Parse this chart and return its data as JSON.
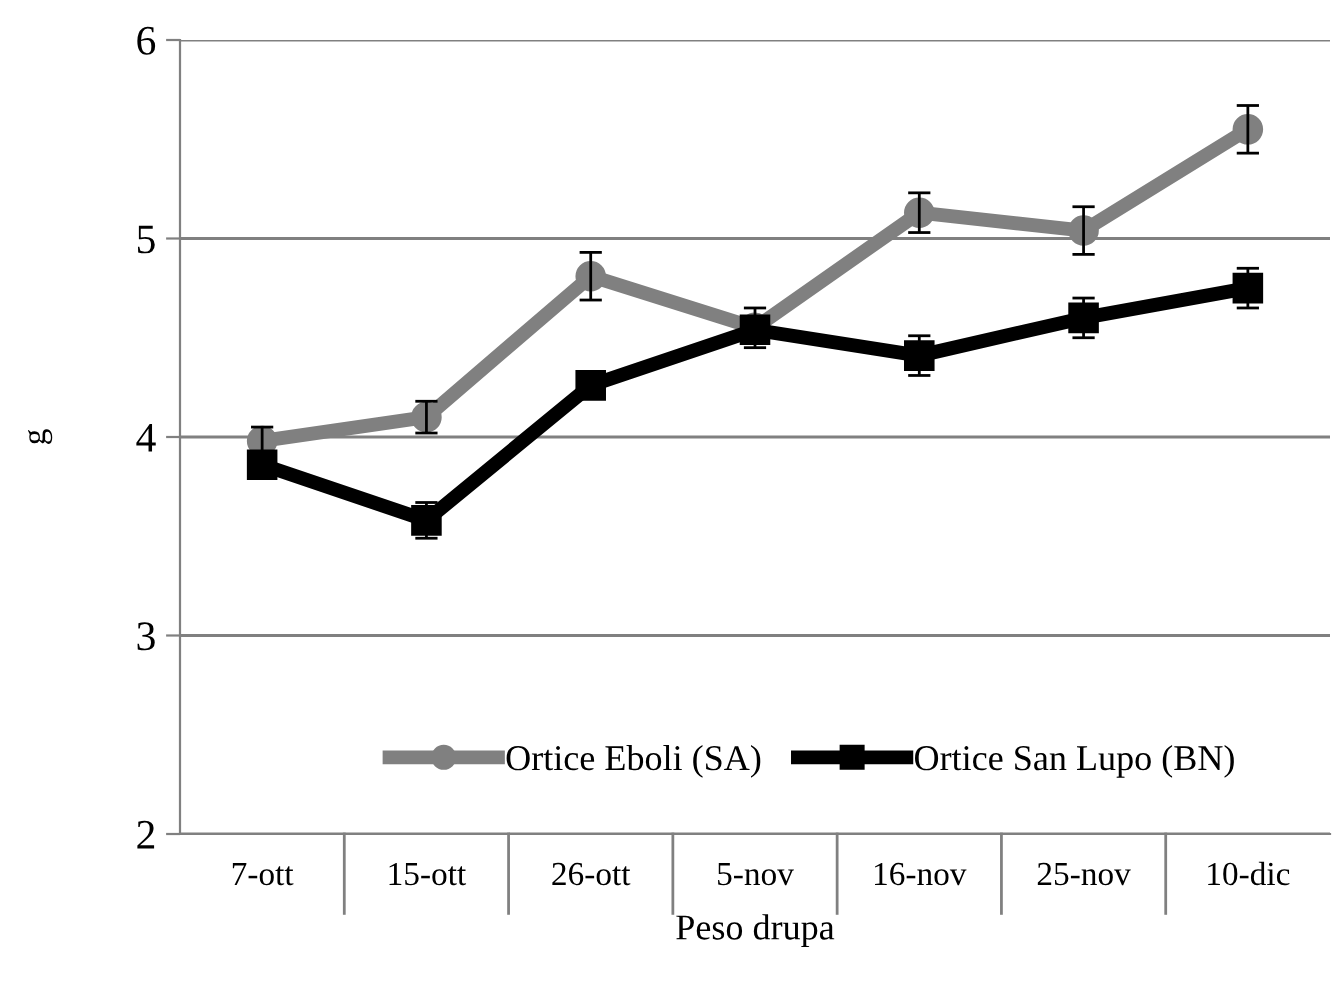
{
  "chart_data": {
    "type": "line",
    "xlabel": "Peso drupa",
    "ylabel": "g",
    "categories": [
      "7-ott",
      "15-ott",
      "26-ott",
      "5-nov",
      "16-nov",
      "25-nov",
      "10-dic"
    ],
    "series": [
      {
        "name": "Ortice Eboli (SA)",
        "color": "#808080",
        "marker": "circle",
        "values": [
          3.98,
          4.1,
          4.81,
          4.55,
          5.13,
          5.04,
          5.55
        ],
        "errors": [
          0.07,
          0.08,
          0.12,
          0.1,
          0.1,
          0.12,
          0.12
        ]
      },
      {
        "name": "Ortice San Lupo (BN)",
        "color": "#000000",
        "marker": "square",
        "values": [
          3.86,
          3.58,
          4.26,
          4.54,
          4.41,
          4.6,
          4.75
        ],
        "errors": [
          0.05,
          0.09,
          0.05,
          0.05,
          0.1,
          0.1,
          0.1
        ]
      }
    ],
    "ylim": [
      2,
      6
    ],
    "yticks": [
      2,
      3,
      4,
      5,
      6
    ],
    "grid": "y",
    "legend": "bottom",
    "line_style": "solid"
  }
}
